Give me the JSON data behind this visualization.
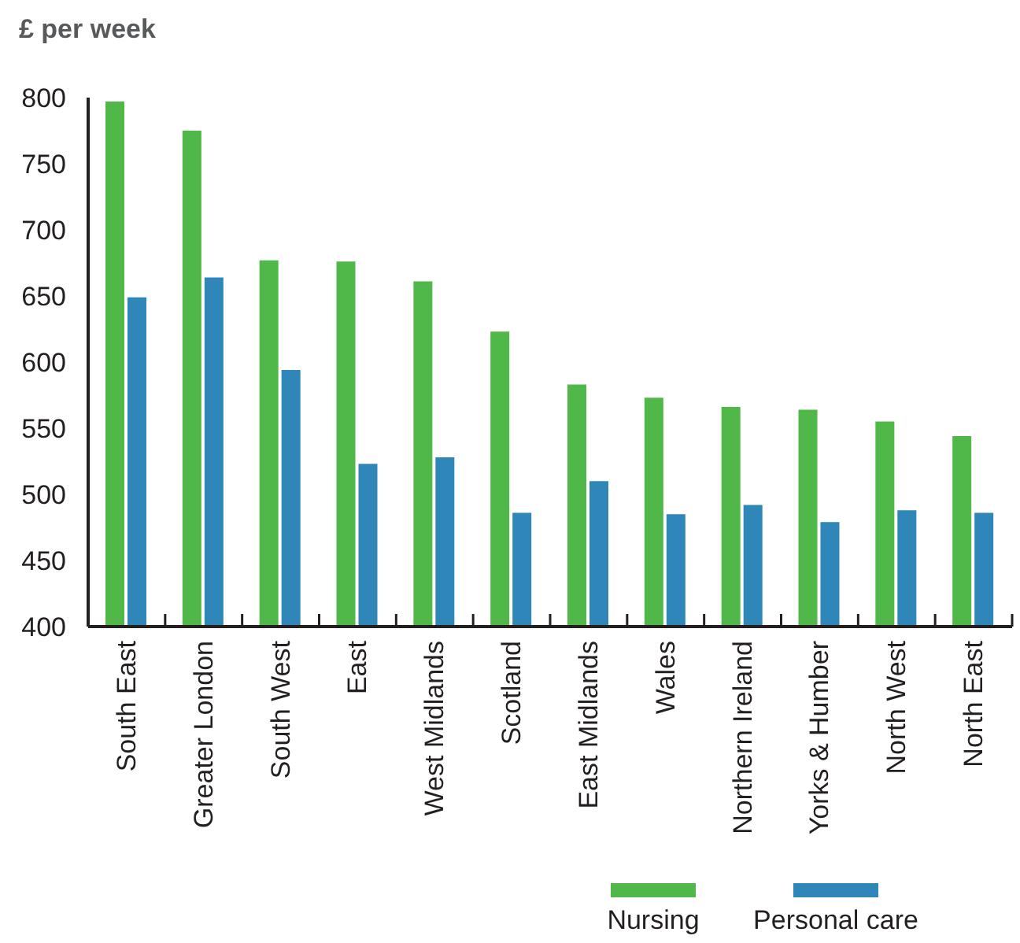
{
  "chart_data": {
    "type": "bar",
    "ylabel": "£ per week",
    "categories": [
      "South East",
      "Greater London",
      "South West",
      "East",
      "West Midlands",
      "Scotland",
      "East Midlands",
      "Wales",
      "Northern Ireland",
      "Yorks & Humber",
      "North West",
      "North East"
    ],
    "series": [
      {
        "name": "Nursing",
        "color": "#50b848",
        "values": [
          797,
          775,
          677,
          676,
          661,
          623,
          583,
          573,
          566,
          564,
          555,
          544
        ]
      },
      {
        "name": "Personal care",
        "color": "#2e86b9",
        "values": [
          649,
          664,
          594,
          523,
          528,
          486,
          510,
          485,
          492,
          479,
          488,
          486
        ]
      }
    ],
    "ylim": [
      400,
      800
    ],
    "yticks": [
      400,
      450,
      500,
      550,
      600,
      650,
      700,
      750,
      800
    ],
    "grid": false,
    "legend": "bottom right"
  }
}
